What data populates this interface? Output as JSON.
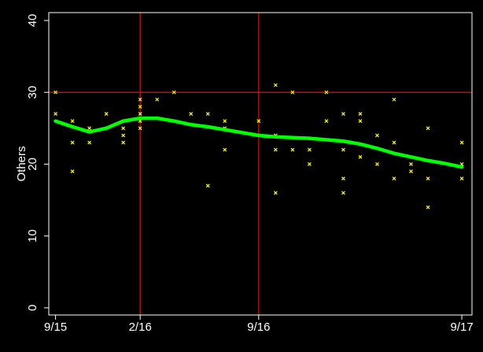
{
  "chart_data": {
    "type": "scatter",
    "y_label": "Others",
    "xlim": [
      -0.4,
      24.6
    ],
    "ylim": [
      -1,
      41.1
    ],
    "xticks": [
      {
        "value": 0,
        "label": "9/15"
      },
      {
        "value": 5,
        "label": "2/16"
      },
      {
        "value": 12,
        "label": "9/16"
      },
      {
        "value": 24,
        "label": "9/17"
      }
    ],
    "yticks": [
      0,
      10,
      20,
      30,
      40
    ],
    "hlines": [
      30
    ],
    "vlines": [
      5,
      12
    ],
    "ref_color": "#ff0000",
    "series": [
      {
        "type": "scatter",
        "color": "#ffff00",
        "x": [
          0,
          0,
          1,
          1,
          1,
          2,
          2,
          3,
          4,
          4,
          4,
          5,
          5,
          5,
          5,
          5,
          6,
          7,
          8,
          9,
          9,
          10,
          10,
          10,
          12,
          13,
          13,
          13,
          13,
          14,
          14,
          15,
          15,
          16,
          16,
          17,
          17,
          17,
          17,
          18,
          18,
          18,
          19,
          19,
          20,
          20,
          20,
          21,
          21,
          22,
          22,
          22,
          24,
          24,
          24
        ],
        "values": [
          30,
          27,
          26,
          23,
          19,
          25,
          23,
          27,
          25,
          24,
          23,
          29,
          28,
          27,
          26,
          25,
          29,
          30,
          27,
          27,
          17,
          26,
          25,
          22,
          26,
          31,
          24,
          22,
          16,
          30,
          22,
          22,
          20,
          30,
          26,
          27,
          22,
          18,
          16,
          27,
          26,
          21,
          24,
          20,
          29,
          23,
          18,
          20,
          19,
          25,
          18,
          14,
          23,
          20,
          18
        ]
      },
      {
        "type": "line",
        "color": "#00ff00",
        "x": [
          0,
          1,
          2,
          3,
          4,
          5,
          6,
          7,
          8,
          9,
          10,
          11,
          12,
          13,
          14,
          15,
          16,
          17,
          18,
          19,
          20,
          21,
          22,
          23,
          24
        ],
        "values": [
          26,
          25.2,
          24.5,
          25,
          26,
          26.4,
          26.4,
          26,
          25.5,
          25.2,
          24.8,
          24.4,
          24,
          23.8,
          23.7,
          23.6,
          23.4,
          23.2,
          22.8,
          22.2,
          21.5,
          21,
          20.5,
          20.1,
          19.6
        ]
      }
    ]
  }
}
